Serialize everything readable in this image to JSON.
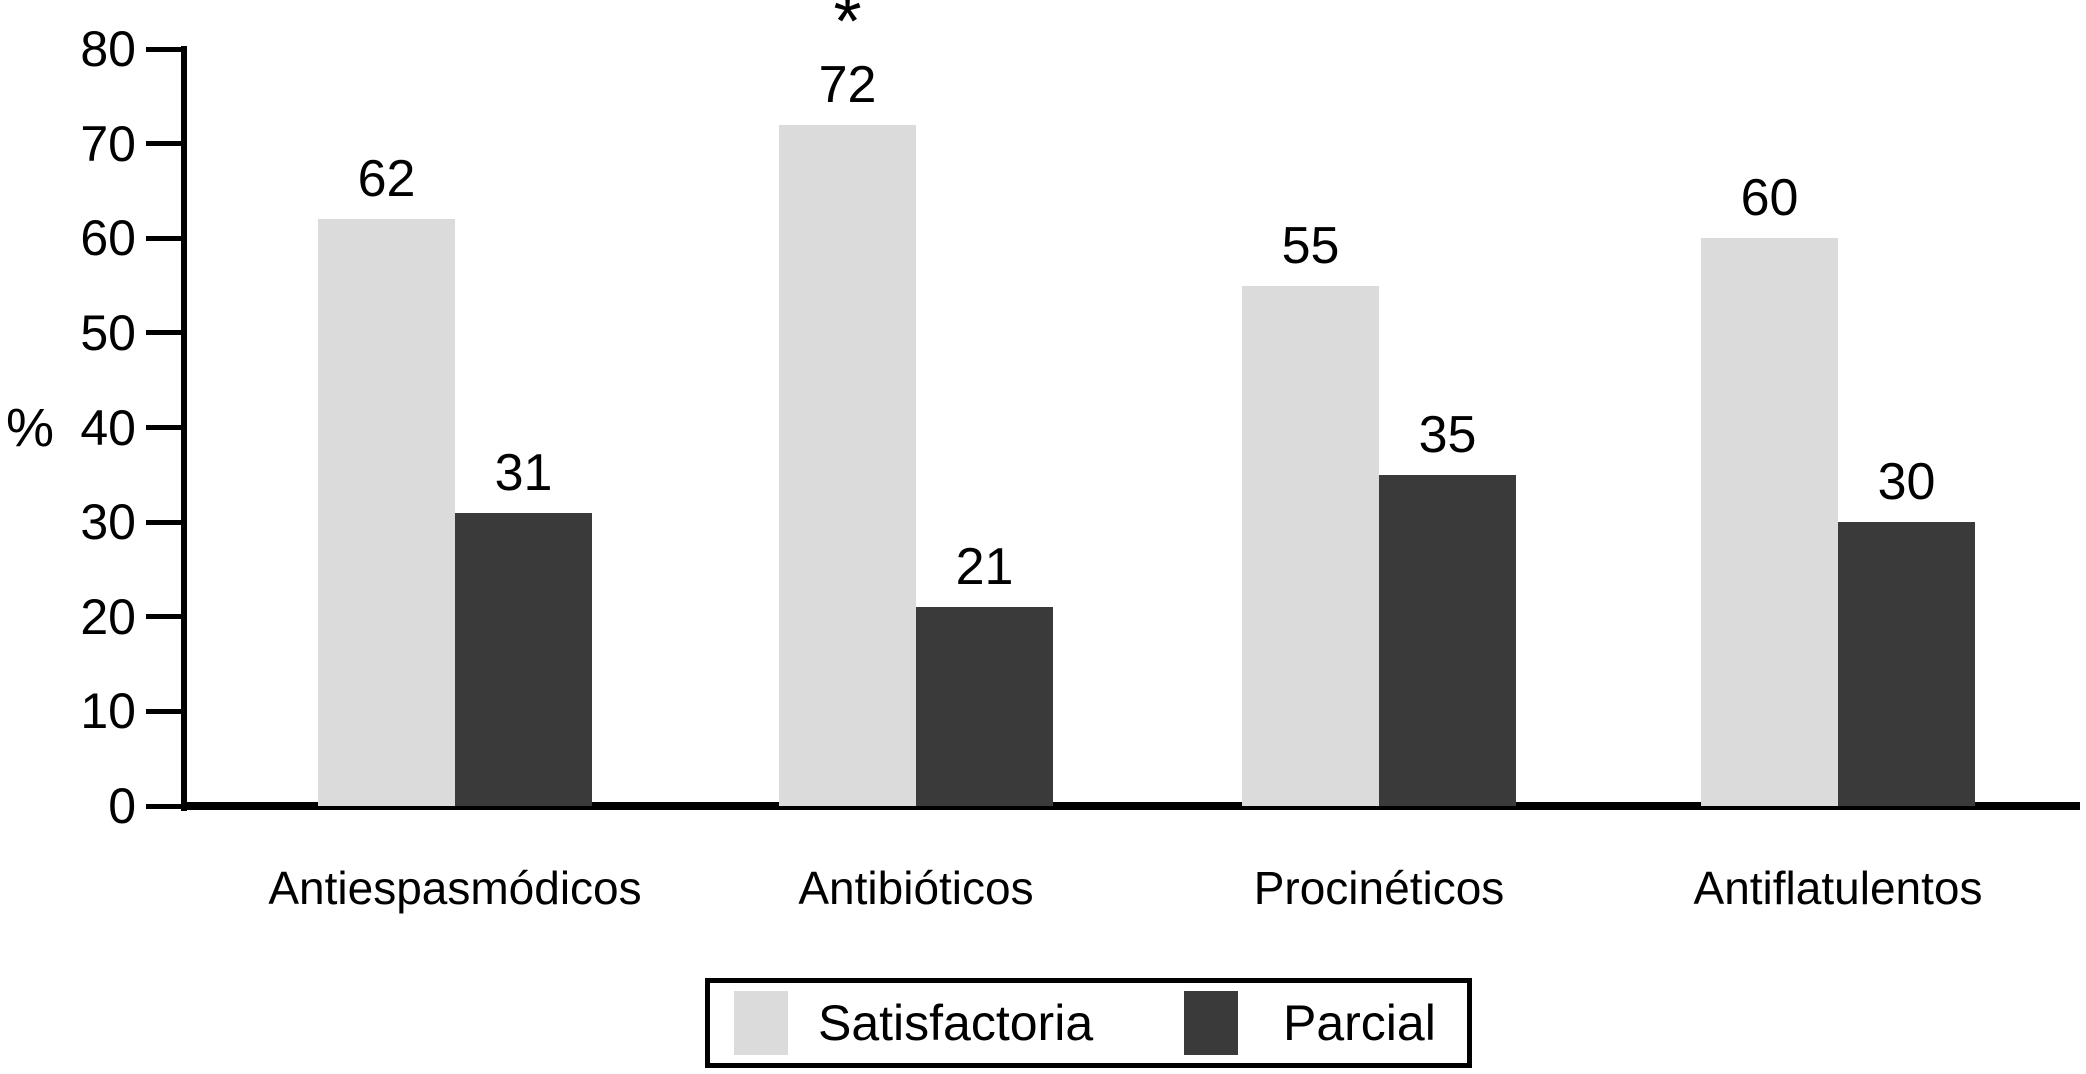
{
  "chart_data": {
    "type": "bar",
    "title": "",
    "xlabel": "",
    "ylabel": "%",
    "ylim": [
      0,
      80
    ],
    "yticks": [
      0,
      10,
      20,
      30,
      40,
      50,
      60,
      70,
      80
    ],
    "grid": false,
    "legend_position": "bottom-center",
    "categories": [
      "Antiespasmódicos",
      "Antibióticos",
      "Procinéticos",
      "Antiflatulentos"
    ],
    "series": [
      {
        "name": "Satisfactoria",
        "color": "#dbdbdb",
        "values": [
          62,
          72,
          55,
          60
        ]
      },
      {
        "name": "Parcial",
        "color": "#3a3a3a",
        "values": [
          31,
          21,
          35,
          30
        ]
      }
    ],
    "annotations": [
      {
        "text": "*",
        "category": "Antibióticos",
        "series": "Satisfactoria",
        "position": "above-bar"
      }
    ]
  },
  "colors": {
    "bar_light": "#dbdbdb",
    "bar_dark": "#3a3a3a",
    "axis": "#000000",
    "background": "#ffffff"
  }
}
